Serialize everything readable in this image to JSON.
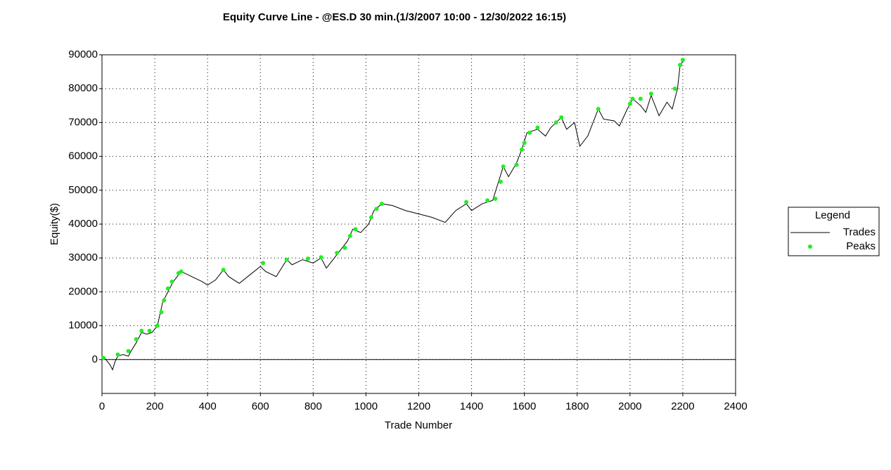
{
  "chart_data": {
    "type": "line",
    "title": "Equity Curve Line - @ES.D 30 min.(1/3/2007 10:00 - 12/30/2022 16:15)",
    "xlabel": "Trade Number",
    "ylabel": "Equity($)",
    "legend_title": "Legend",
    "legend": "right",
    "grid": true,
    "xlim": [
      0,
      2400
    ],
    "xticks": [
      0,
      200,
      400,
      600,
      800,
      1000,
      1200,
      1400,
      1600,
      1800,
      2000,
      2200,
      2400
    ],
    "ylim": [
      -10000,
      90000
    ],
    "yticks": [
      0,
      10000,
      20000,
      30000,
      40000,
      50000,
      60000,
      70000,
      80000,
      90000
    ],
    "series": [
      {
        "name": "Trades",
        "color": "#000000",
        "kind": "line",
        "x": [
          0,
          10,
          30,
          40,
          50,
          60,
          80,
          100,
          110,
          130,
          150,
          170,
          190,
          210,
          230,
          250,
          270,
          290,
          300,
          340,
          380,
          400,
          430,
          460,
          480,
          520,
          560,
          600,
          620,
          660,
          700,
          720,
          760,
          800,
          830,
          850,
          880,
          900,
          930,
          950,
          980,
          1010,
          1030,
          1060,
          1100,
          1150,
          1200,
          1250,
          1300,
          1340,
          1380,
          1400,
          1440,
          1480,
          1500,
          1520,
          1540,
          1570,
          1590,
          1610,
          1650,
          1680,
          1700,
          1740,
          1760,
          1790,
          1810,
          1840,
          1870,
          1880,
          1900,
          1940,
          1960,
          1990,
          2010,
          2040,
          2060,
          2080,
          2110,
          2140,
          2160,
          2180,
          2190,
          2200
        ],
        "values": [
          0,
          500,
          -1500,
          -3000,
          -500,
          1000,
          1500,
          1000,
          2500,
          5000,
          8000,
          7500,
          8000,
          10000,
          17000,
          20000,
          23000,
          25000,
          26000,
          24500,
          23000,
          22000,
          23500,
          26500,
          24500,
          22500,
          25000,
          27500,
          26000,
          24500,
          29500,
          28000,
          29500,
          28500,
          30000,
          27000,
          30000,
          32000,
          35000,
          38500,
          37500,
          40000,
          44000,
          46000,
          45500,
          44000,
          43000,
          42000,
          40500,
          44000,
          46000,
          44000,
          46000,
          47000,
          52000,
          57000,
          54000,
          58000,
          62000,
          67000,
          68000,
          66000,
          68500,
          71500,
          68000,
          70000,
          63000,
          66000,
          72000,
          74000,
          71000,
          70500,
          69000,
          74000,
          77000,
          75000,
          73000,
          78000,
          72000,
          76000,
          74000,
          80000,
          87000,
          88000
        ]
      },
      {
        "name": "Peaks",
        "color": "#22ee22",
        "kind": "scatter",
        "x": [
          5,
          60,
          100,
          130,
          150,
          180,
          210,
          225,
          235,
          250,
          265,
          290,
          300,
          460,
          610,
          700,
          780,
          830,
          890,
          920,
          940,
          960,
          1020,
          1040,
          1060,
          1380,
          1460,
          1490,
          1510,
          1520,
          1570,
          1590,
          1600,
          1620,
          1650,
          1720,
          1740,
          1880,
          2000,
          2010,
          2040,
          2080,
          2170,
          2190,
          2200
        ],
        "values": [
          500,
          1500,
          2500,
          6000,
          8500,
          8500,
          10000,
          14000,
          17500,
          21000,
          23000,
          25500,
          26000,
          26500,
          28500,
          29500,
          29800,
          30200,
          31500,
          33000,
          36500,
          38500,
          42000,
          44500,
          46000,
          46500,
          47000,
          47500,
          52500,
          57000,
          57500,
          62000,
          64000,
          67000,
          68500,
          70000,
          71500,
          74000,
          75500,
          77000,
          77000,
          78500,
          80000,
          87000,
          88500
        ]
      }
    ]
  }
}
